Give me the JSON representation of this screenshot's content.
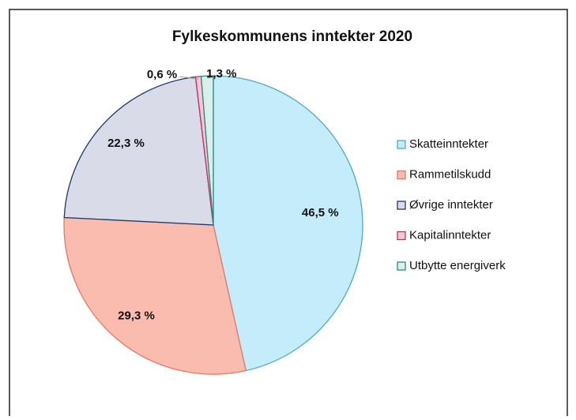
{
  "chart_data": {
    "type": "pie",
    "title": "Fylkeskommunens  inntekter 2020",
    "categories": [
      "Skatteinntekter",
      "Rammetilskudd",
      "Øvrige inntekter",
      "Kapitalinntekter",
      "Utbytte energiverk"
    ],
    "values": [
      46.5,
      29.3,
      22.3,
      0.6,
      1.3
    ],
    "value_labels": [
      "46,5 %",
      "29,3 %",
      "22,3 %",
      "0,6 %",
      "1,3 %"
    ],
    "colors": [
      "#c4ecfb",
      "#f9bcae",
      "#d9dce8",
      "#f5c8d8",
      "#d8f0ea"
    ],
    "edge_colors": [
      "#4bacc6",
      "#e07a66",
      "#1f3864",
      "#c0306a",
      "#2e8b7a"
    ],
    "legend": "right"
  }
}
